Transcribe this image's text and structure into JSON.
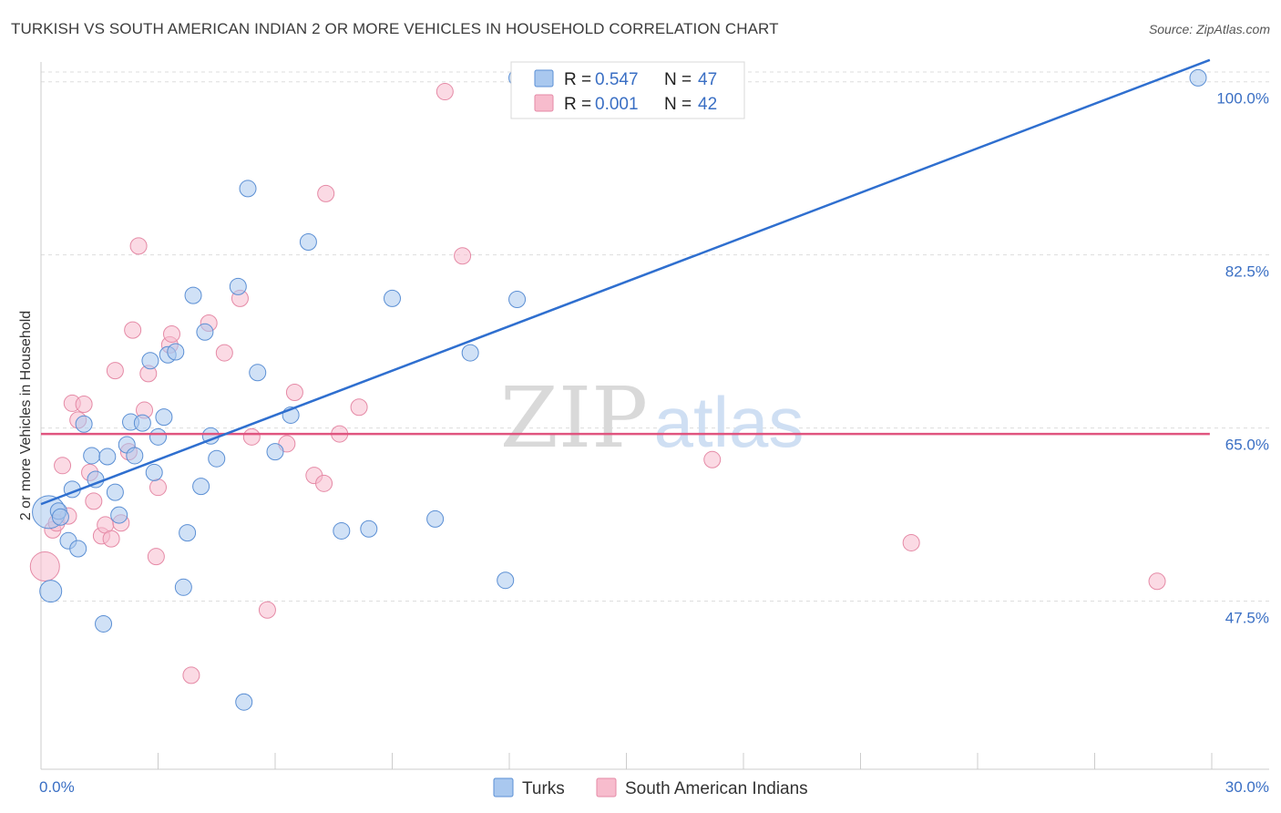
{
  "title": "TURKISH VS SOUTH AMERICAN INDIAN 2 OR MORE VEHICLES IN HOUSEHOLD CORRELATION CHART",
  "source": "Source: ZipAtlas.com",
  "watermark": {
    "zip": "ZIP",
    "atlas": "atlas"
  },
  "colors": {
    "turks_fill": "#a9c8ef",
    "turks_stroke": "#5b8fd4",
    "turks_line": "#2f6fcf",
    "sai_fill": "#f7bccd",
    "sai_stroke": "#e58aa6",
    "sai_line": "#e0557f",
    "axis_label": "#3a6fc4",
    "grid": "#dddddd"
  },
  "legend": {
    "rows": [
      {
        "r_label": "R = ",
        "r_value": "0.547",
        "n_label": "N = ",
        "n_value": "47"
      },
      {
        "r_label": "R = ",
        "r_value": "0.001",
        "n_label": "N = ",
        "n_value": "42"
      }
    ]
  },
  "bottom_legend": [
    "Turks",
    "South American Indians"
  ],
  "chart_data": {
    "type": "scatter",
    "xlabel": "",
    "ylabel": "2 or more Vehicles in Household",
    "xlim": [
      0,
      30
    ],
    "ylim": [
      30.5,
      102
    ],
    "x_tick_labels": [
      "0.0%",
      "30.0%"
    ],
    "y_ticks": [
      47.5,
      65.0,
      82.5,
      100.0
    ],
    "y_tick_labels": [
      "47.5%",
      "65.0%",
      "82.5%",
      "100.0%"
    ],
    "series": [
      {
        "name": "Turks",
        "r": 0.547,
        "n": 47,
        "trend": {
          "x": [
            0,
            29.95
          ],
          "y": [
            57.3,
            102.2
          ]
        },
        "points": [
          {
            "x": 0.2,
            "y": 56.5,
            "s": 18
          },
          {
            "x": 0.25,
            "y": 48.5,
            "s": 12
          },
          {
            "x": 0.45,
            "y": 56.6,
            "s": 9
          },
          {
            "x": 0.5,
            "y": 56.0,
            "s": 9
          },
          {
            "x": 0.7,
            "y": 53.6,
            "s": 9
          },
          {
            "x": 0.8,
            "y": 58.8,
            "s": 9
          },
          {
            "x": 0.95,
            "y": 52.8,
            "s": 9
          },
          {
            "x": 1.1,
            "y": 65.4,
            "s": 9
          },
          {
            "x": 1.3,
            "y": 62.2,
            "s": 9
          },
          {
            "x": 1.4,
            "y": 59.8,
            "s": 9
          },
          {
            "x": 1.6,
            "y": 45.2,
            "s": 9
          },
          {
            "x": 1.7,
            "y": 62.1,
            "s": 9
          },
          {
            "x": 1.9,
            "y": 58.5,
            "s": 9
          },
          {
            "x": 2.0,
            "y": 56.2,
            "s": 9
          },
          {
            "x": 2.2,
            "y": 63.3,
            "s": 9
          },
          {
            "x": 2.3,
            "y": 65.6,
            "s": 9
          },
          {
            "x": 2.4,
            "y": 62.2,
            "s": 9
          },
          {
            "x": 2.6,
            "y": 65.5,
            "s": 9
          },
          {
            "x": 2.8,
            "y": 71.8,
            "s": 9
          },
          {
            "x": 2.9,
            "y": 60.5,
            "s": 9
          },
          {
            "x": 3.0,
            "y": 64.1,
            "s": 9
          },
          {
            "x": 3.15,
            "y": 66.1,
            "s": 9
          },
          {
            "x": 3.25,
            "y": 72.4,
            "s": 9
          },
          {
            "x": 3.45,
            "y": 72.7,
            "s": 9
          },
          {
            "x": 3.65,
            "y": 48.9,
            "s": 9
          },
          {
            "x": 3.75,
            "y": 54.4,
            "s": 9
          },
          {
            "x": 3.9,
            "y": 78.4,
            "s": 9
          },
          {
            "x": 4.1,
            "y": 59.1,
            "s": 9
          },
          {
            "x": 4.2,
            "y": 74.7,
            "s": 9
          },
          {
            "x": 4.35,
            "y": 64.2,
            "s": 9
          },
          {
            "x": 4.5,
            "y": 61.9,
            "s": 9
          },
          {
            "x": 5.05,
            "y": 79.3,
            "s": 9
          },
          {
            "x": 5.2,
            "y": 37.3,
            "s": 9
          },
          {
            "x": 5.3,
            "y": 89.2,
            "s": 9
          },
          {
            "x": 5.55,
            "y": 70.6,
            "s": 9
          },
          {
            "x": 6.0,
            "y": 62.6,
            "s": 9
          },
          {
            "x": 6.4,
            "y": 66.3,
            "s": 9
          },
          {
            "x": 6.85,
            "y": 83.8,
            "s": 9
          },
          {
            "x": 7.7,
            "y": 54.6,
            "s": 9
          },
          {
            "x": 8.4,
            "y": 54.8,
            "s": 9
          },
          {
            "x": 9.0,
            "y": 78.1,
            "s": 9
          },
          {
            "x": 10.1,
            "y": 55.8,
            "s": 9
          },
          {
            "x": 11.0,
            "y": 72.6,
            "s": 9
          },
          {
            "x": 11.9,
            "y": 49.6,
            "s": 9
          },
          {
            "x": 12.2,
            "y": 100.4,
            "s": 9
          },
          {
            "x": 12.2,
            "y": 78.0,
            "s": 9
          },
          {
            "x": 29.65,
            "y": 100.4,
            "s": 9
          }
        ]
      },
      {
        "name": "South American Indians",
        "r": 0.001,
        "n": 42,
        "trend": {
          "x": [
            0,
            29.95
          ],
          "y": [
            64.4,
            64.4
          ]
        },
        "points": [
          {
            "x": 0.1,
            "y": 51.0,
            "s": 16
          },
          {
            "x": 0.3,
            "y": 54.7,
            "s": 9
          },
          {
            "x": 0.4,
            "y": 55.4,
            "s": 9
          },
          {
            "x": 0.55,
            "y": 61.2,
            "s": 9
          },
          {
            "x": 0.7,
            "y": 56.1,
            "s": 9
          },
          {
            "x": 0.8,
            "y": 67.5,
            "s": 9
          },
          {
            "x": 0.95,
            "y": 65.8,
            "s": 9
          },
          {
            "x": 1.1,
            "y": 67.4,
            "s": 9
          },
          {
            "x": 1.25,
            "y": 60.5,
            "s": 9
          },
          {
            "x": 1.35,
            "y": 57.6,
            "s": 9
          },
          {
            "x": 1.55,
            "y": 54.1,
            "s": 9
          },
          {
            "x": 1.65,
            "y": 55.2,
            "s": 9
          },
          {
            "x": 1.8,
            "y": 53.8,
            "s": 9
          },
          {
            "x": 1.9,
            "y": 70.8,
            "s": 9
          },
          {
            "x": 2.05,
            "y": 55.4,
            "s": 9
          },
          {
            "x": 2.25,
            "y": 62.6,
            "s": 9
          },
          {
            "x": 2.35,
            "y": 74.9,
            "s": 9
          },
          {
            "x": 2.5,
            "y": 83.4,
            "s": 9
          },
          {
            "x": 2.65,
            "y": 66.8,
            "s": 9
          },
          {
            "x": 2.75,
            "y": 70.5,
            "s": 9
          },
          {
            "x": 2.95,
            "y": 52.0,
            "s": 9
          },
          {
            "x": 3.0,
            "y": 59.0,
            "s": 9
          },
          {
            "x": 3.3,
            "y": 73.4,
            "s": 9
          },
          {
            "x": 3.35,
            "y": 74.5,
            "s": 9
          },
          {
            "x": 3.85,
            "y": 40.0,
            "s": 9
          },
          {
            "x": 4.3,
            "y": 75.6,
            "s": 9
          },
          {
            "x": 4.7,
            "y": 72.6,
            "s": 9
          },
          {
            "x": 5.1,
            "y": 78.1,
            "s": 9
          },
          {
            "x": 5.4,
            "y": 64.1,
            "s": 9
          },
          {
            "x": 5.8,
            "y": 46.6,
            "s": 9
          },
          {
            "x": 6.3,
            "y": 63.4,
            "s": 9
          },
          {
            "x": 6.5,
            "y": 68.6,
            "s": 9
          },
          {
            "x": 7.0,
            "y": 60.2,
            "s": 9
          },
          {
            "x": 7.25,
            "y": 59.4,
            "s": 9
          },
          {
            "x": 7.3,
            "y": 88.7,
            "s": 9
          },
          {
            "x": 7.65,
            "y": 64.4,
            "s": 9
          },
          {
            "x": 8.15,
            "y": 67.1,
            "s": 9
          },
          {
            "x": 10.35,
            "y": 99.0,
            "s": 9
          },
          {
            "x": 10.8,
            "y": 82.4,
            "s": 9
          },
          {
            "x": 17.2,
            "y": 61.8,
            "s": 9
          },
          {
            "x": 22.3,
            "y": 53.4,
            "s": 9
          },
          {
            "x": 28.6,
            "y": 49.5,
            "s": 9
          }
        ]
      }
    ]
  }
}
